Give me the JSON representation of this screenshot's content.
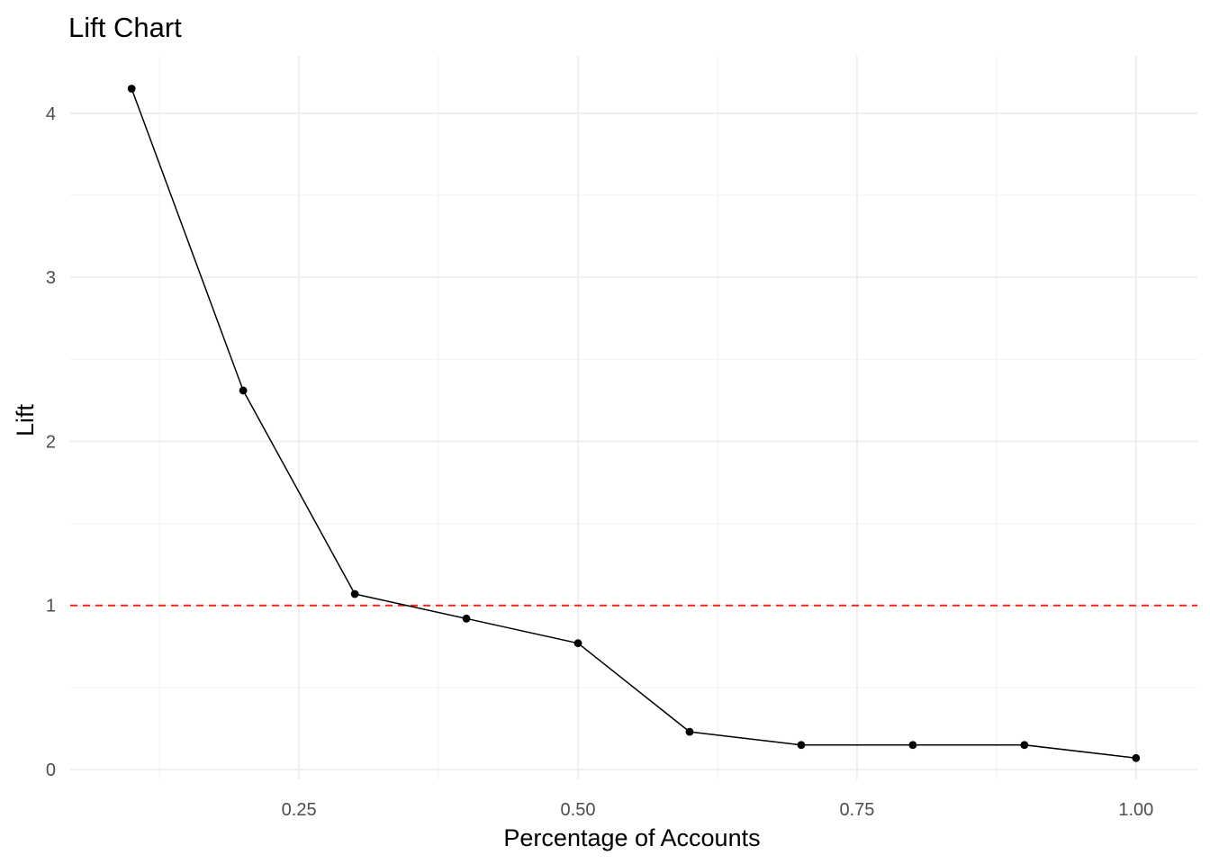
{
  "chart_data": {
    "type": "line",
    "title": "Lift Chart",
    "xlabel": "Percentage of Accounts",
    "ylabel": "Lift",
    "xlim": [
      0.045,
      1.055
    ],
    "ylim": [
      -0.06,
      4.35
    ],
    "x_ticks": [
      0.25,
      0.5,
      0.75,
      1.0
    ],
    "x_tick_labels": [
      "0.25",
      "0.50",
      "0.75",
      "1.00"
    ],
    "y_ticks": [
      0,
      1,
      2,
      3,
      4
    ],
    "y_tick_labels": [
      "0",
      "1",
      "2",
      "3",
      "4"
    ],
    "grid": true,
    "series": [
      {
        "x": [
          0.1,
          0.2,
          0.3,
          0.4,
          0.5,
          0.6,
          0.7,
          0.8,
          0.9,
          1.0
        ],
        "y": [
          4.15,
          2.31,
          1.07,
          0.92,
          0.77,
          0.23,
          0.15,
          0.15,
          0.15,
          0.07
        ],
        "color": "#000000",
        "markers": true
      }
    ],
    "reference_line": {
      "y": 1,
      "color": "#e8291c",
      "style": "dashed"
    }
  }
}
